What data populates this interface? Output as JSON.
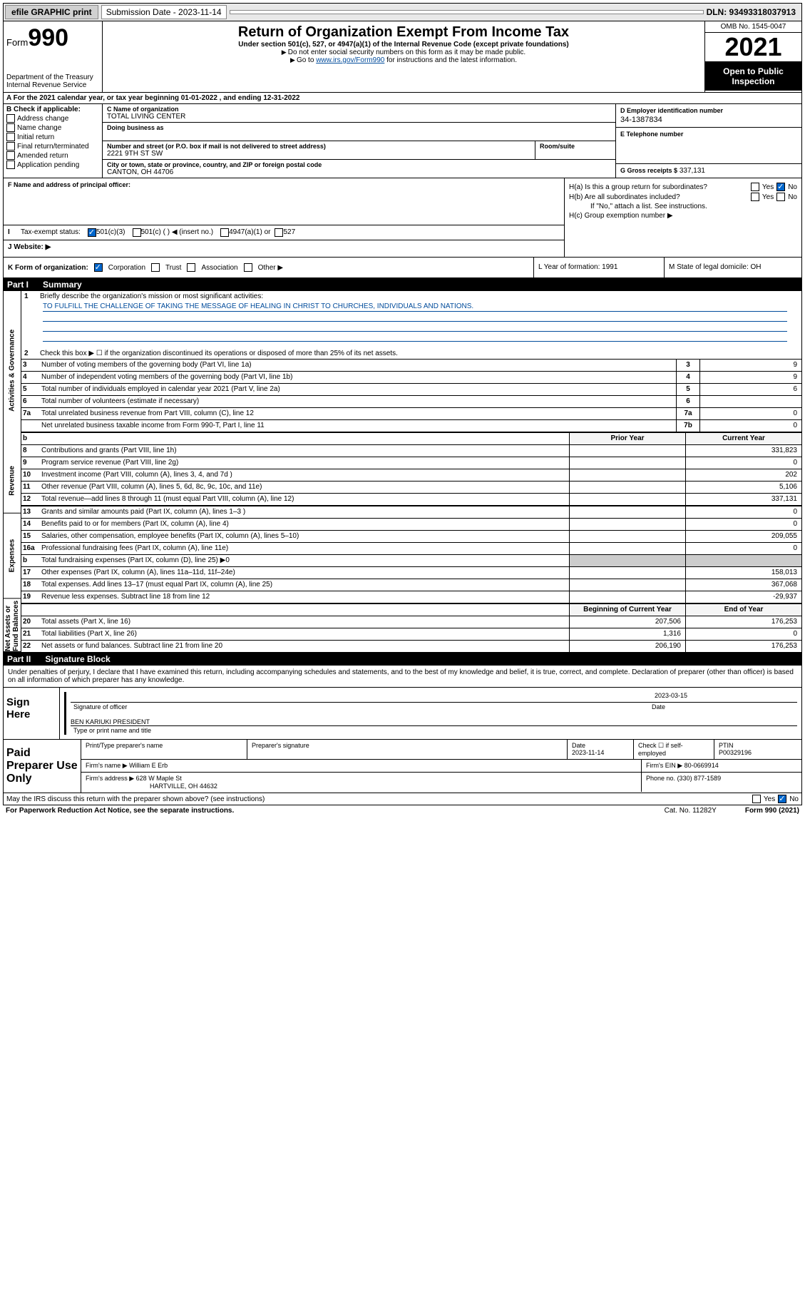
{
  "top_bar": {
    "efile": "efile GRAPHIC print",
    "sub_label": "Submission Date - 2023-11-14",
    "dln": "DLN: 93493318037913"
  },
  "header": {
    "form_label": "Form",
    "form_number": "990",
    "dept": "Department of the Treasury",
    "irs": "Internal Revenue Service",
    "title": "Return of Organization Exempt From Income Tax",
    "sub1": "Under section 501(c), 527, or 4947(a)(1) of the Internal Revenue Code (except private foundations)",
    "sub2": "Do not enter social security numbers on this form as it may be made public.",
    "sub3_pre": "Go to ",
    "sub3_link": "www.irs.gov/Form990",
    "sub3_post": " for instructions and the latest information.",
    "omb": "OMB No. 1545-0047",
    "year": "2021",
    "open1": "Open to Public",
    "open2": "Inspection"
  },
  "row_a": "A For the 2021 calendar year, or tax year beginning 01-01-2022  , and ending 12-31-2022",
  "section_b": {
    "title": "B Check if applicable:",
    "opts": [
      "Address change",
      "Name change",
      "Initial return",
      "Final return/terminated",
      "Amended return",
      "Application pending"
    ]
  },
  "section_c": {
    "name_lbl": "C Name of organization",
    "name": "TOTAL LIVING CENTER",
    "dba_lbl": "Doing business as",
    "street_lbl": "Number and street (or P.O. box if mail is not delivered to street address)",
    "suite_lbl": "Room/suite",
    "street": "2221 9TH ST SW",
    "city_lbl": "City or town, state or province, country, and ZIP or foreign postal code",
    "city": "CANTON, OH  44706"
  },
  "section_d": {
    "lbl": "D Employer identification number",
    "val": "34-1387834"
  },
  "section_e": {
    "lbl": "E Telephone number"
  },
  "section_g": {
    "lbl": "G Gross receipts $",
    "val": "337,131"
  },
  "section_f": {
    "lbl": "F Name and address of principal officer:"
  },
  "section_h": {
    "ha": "H(a)  Is this a group return for subordinates?",
    "hb": "H(b)  Are all subordinates included?",
    "hb_note": "If \"No,\" attach a list. See instructions.",
    "hc": "H(c)  Group exemption number ▶"
  },
  "section_i": {
    "lbl": "Tax-exempt status:",
    "opts": [
      "501(c)(3)",
      "501(c) (  ) ◀ (insert no.)",
      "4947(a)(1) or",
      "527"
    ]
  },
  "section_j": {
    "lbl": "J   Website: ▶"
  },
  "section_k": {
    "lbl": "K Form of organization:",
    "opts": [
      "Corporation",
      "Trust",
      "Association",
      "Other ▶"
    ]
  },
  "section_l": {
    "lbl": "L Year of formation: 1991"
  },
  "section_m": {
    "lbl": "M State of legal domicile: OH"
  },
  "part1": {
    "header_num": "Part I",
    "header_title": "Summary",
    "tabs": [
      "Activities & Governance",
      "Revenue",
      "Expenses",
      "Net Assets or Fund Balances"
    ],
    "line1": "Briefly describe the organization's mission or most significant activities:",
    "mission": "TO FULFILL THE CHALLENGE OF TAKING THE MESSAGE OF HEALING IN CHRIST TO CHURCHES, INDIVIDUALS AND NATIONS.",
    "line2": "Check this box ▶ ☐  if the organization discontinued its operations or disposed of more than 25% of its net assets.",
    "num_lines": [
      {
        "n": "3",
        "d": "Number of voting members of the governing body (Part VI, line 1a)",
        "b": "3",
        "v": "9"
      },
      {
        "n": "4",
        "d": "Number of independent voting members of the governing body (Part VI, line 1b)",
        "b": "4",
        "v": "9"
      },
      {
        "n": "5",
        "d": "Total number of individuals employed in calendar year 2021 (Part V, line 2a)",
        "b": "5",
        "v": "6"
      },
      {
        "n": "6",
        "d": "Total number of volunteers (estimate if necessary)",
        "b": "6",
        "v": ""
      },
      {
        "n": "7a",
        "d": "Total unrelated business revenue from Part VIII, column (C), line 12",
        "b": "7a",
        "v": "0"
      },
      {
        "n": "",
        "d": "Net unrelated business taxable income from Form 990-T, Part I, line 11",
        "b": "7b",
        "v": "0"
      }
    ],
    "col_headers": {
      "prior": "Prior Year",
      "current": "Current Year"
    },
    "rev_lines": [
      {
        "n": "8",
        "d": "Contributions and grants (Part VIII, line 1h)",
        "p": "",
        "c": "331,823"
      },
      {
        "n": "9",
        "d": "Program service revenue (Part VIII, line 2g)",
        "p": "",
        "c": "0"
      },
      {
        "n": "10",
        "d": "Investment income (Part VIII, column (A), lines 3, 4, and 7d )",
        "p": "",
        "c": "202"
      },
      {
        "n": "11",
        "d": "Other revenue (Part VIII, column (A), lines 5, 6d, 8c, 9c, 10c, and 11e)",
        "p": "",
        "c": "5,106"
      },
      {
        "n": "12",
        "d": "Total revenue—add lines 8 through 11 (must equal Part VIII, column (A), line 12)",
        "p": "",
        "c": "337,131"
      }
    ],
    "exp_lines": [
      {
        "n": "13",
        "d": "Grants and similar amounts paid (Part IX, column (A), lines 1–3 )",
        "p": "",
        "c": "0"
      },
      {
        "n": "14",
        "d": "Benefits paid to or for members (Part IX, column (A), line 4)",
        "p": "",
        "c": "0"
      },
      {
        "n": "15",
        "d": "Salaries, other compensation, employee benefits (Part IX, column (A), lines 5–10)",
        "p": "",
        "c": "209,055"
      },
      {
        "n": "16a",
        "d": "Professional fundraising fees (Part IX, column (A), line 11e)",
        "p": "",
        "c": "0"
      },
      {
        "n": "b",
        "d": "Total fundraising expenses (Part IX, column (D), line 25) ▶0",
        "p": "shaded",
        "c": "shaded"
      },
      {
        "n": "17",
        "d": "Other expenses (Part IX, column (A), lines 11a–11d, 11f–24e)",
        "p": "",
        "c": "158,013"
      },
      {
        "n": "18",
        "d": "Total expenses. Add lines 13–17 (must equal Part IX, column (A), line 25)",
        "p": "",
        "c": "367,068"
      },
      {
        "n": "19",
        "d": "Revenue less expenses. Subtract line 18 from line 12",
        "p": "",
        "c": "-29,937"
      }
    ],
    "net_headers": {
      "beg": "Beginning of Current Year",
      "end": "End of Year"
    },
    "net_lines": [
      {
        "n": "20",
        "d": "Total assets (Part X, line 16)",
        "p": "207,506",
        "c": "176,253"
      },
      {
        "n": "21",
        "d": "Total liabilities (Part X, line 26)",
        "p": "1,316",
        "c": "0"
      },
      {
        "n": "22",
        "d": "Net assets or fund balances. Subtract line 21 from line 20",
        "p": "206,190",
        "c": "176,253"
      }
    ]
  },
  "part2": {
    "header_num": "Part II",
    "header_title": "Signature Block",
    "decl": "Under penalties of perjury, I declare that I have examined this return, including accompanying schedules and statements, and to the best of my knowledge and belief, it is true, correct, and complete. Declaration of preparer (other than officer) is based on all information of which preparer has any knowledge."
  },
  "sign_here": {
    "lbl": "Sign Here",
    "sig_lbl": "Signature of officer",
    "date_lbl": "Date",
    "date_val": "2023-03-15",
    "name": "BEN KARIUKI PRESIDENT",
    "name_lbl": "Type or print name and title"
  },
  "preparer": {
    "lbl": "Paid Preparer Use Only",
    "col1": "Print/Type preparer's name",
    "col2": "Preparer's signature",
    "col3": "Date",
    "date": "2023-11-14",
    "col4": "Check ☐ if self-employed",
    "col5": "PTIN",
    "ptin": "P00329196",
    "firm_name_lbl": "Firm's name    ▶",
    "firm_name": "William E Erb",
    "firm_ein_lbl": "Firm's EIN ▶",
    "firm_ein": "80-0669914",
    "firm_addr_lbl": "Firm's address ▶",
    "firm_addr1": "628 W Maple St",
    "firm_addr2": "HARTVILLE, OH  44632",
    "phone_lbl": "Phone no.",
    "phone": "(330) 877-1589"
  },
  "footer": {
    "discuss": "May the IRS discuss this return with the preparer shown above? (see instructions)",
    "paperwork": "For Paperwork Reduction Act Notice, see the separate instructions.",
    "cat": "Cat. No. 11282Y",
    "form": "Form 990 (2021)"
  }
}
